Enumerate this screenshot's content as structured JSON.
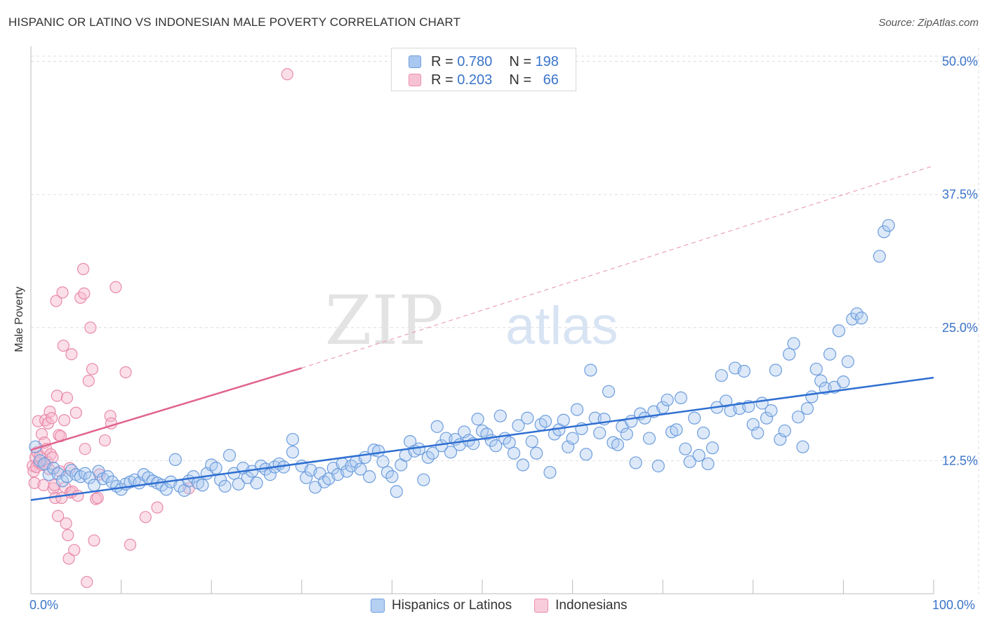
{
  "title": "HISPANIC OR LATINO VS INDONESIAN MALE POVERTY CORRELATION CHART",
  "source": "Source: ZipAtlas.com",
  "watermark": {
    "zip": "ZIP",
    "atlas": "atlas"
  },
  "colors": {
    "blue": "#3a74c9",
    "blue_fill": "#a9c7f0",
    "blue_line": "#2f6fd1",
    "pink": "#e6739a",
    "pink_fill": "#f6b7cb",
    "pink_line": "#e0648e",
    "grid": "#dddddd",
    "text": "#333333"
  },
  "stats": {
    "rows": [
      {
        "r_label": "R =",
        "r_value": "0.780",
        "n_label": "N =",
        "n_value": "198",
        "series": "Hispanics or Latinos"
      },
      {
        "r_label": "R =",
        "r_value": "0.203",
        "n_label": "N =",
        "n_value": "66",
        "series": "Indonesians"
      }
    ]
  },
  "legend": {
    "items": [
      "Hispanics or Latinos",
      "Indonesians"
    ]
  },
  "chart_data": {
    "type": "scatter",
    "title": "HISPANIC OR LATINO VS INDONESIAN MALE POVERTY CORRELATION CHART",
    "xlabel": "",
    "ylabel": "Male Poverty",
    "xlim": [
      0,
      100
    ],
    "ylim": [
      0,
      50.5
    ],
    "x_tick_labels": [
      "0.0%",
      "100.0%"
    ],
    "y_ticks": [
      12.5,
      25.0,
      37.5,
      50.0
    ],
    "y_tick_labels": [
      "12.5%",
      "25.0%",
      "37.5%",
      "50.0%"
    ],
    "grid": true,
    "legend_position": "bottom-center",
    "series": [
      {
        "name": "Hispanics or Latinos",
        "R": 0.78,
        "N": 198,
        "trendline": {
          "x": [
            0,
            100
          ],
          "y": [
            8.8,
            20.3
          ]
        },
        "points": [
          [
            0.5,
            13.8
          ],
          [
            1,
            12.5
          ],
          [
            1.5,
            12.2
          ],
          [
            2,
            11.2
          ],
          [
            2.5,
            11.8
          ],
          [
            3,
            11.3
          ],
          [
            3.5,
            10.6
          ],
          [
            4,
            11.0
          ],
          [
            4.5,
            11.6
          ],
          [
            5,
            11.2
          ],
          [
            5.5,
            11.0
          ],
          [
            6,
            11.3
          ],
          [
            6.5,
            10.9
          ],
          [
            7,
            10.2
          ],
          [
            7.5,
            11.5
          ],
          [
            8,
            10.8
          ],
          [
            8.5,
            11.0
          ],
          [
            9,
            10.5
          ],
          [
            9.5,
            10.1
          ],
          [
            10,
            9.8
          ],
          [
            10.5,
            10.3
          ],
          [
            11,
            10.5
          ],
          [
            11.5,
            10.7
          ],
          [
            12,
            10.4
          ],
          [
            12.5,
            11.2
          ],
          [
            13,
            10.9
          ],
          [
            13.5,
            10.6
          ],
          [
            14,
            10.4
          ],
          [
            14.5,
            10.2
          ],
          [
            15,
            9.8
          ],
          [
            15.5,
            10.5
          ],
          [
            16,
            12.6
          ],
          [
            16.5,
            10.1
          ],
          [
            17,
            9.7
          ],
          [
            17.5,
            10.6
          ],
          [
            18,
            11.0
          ],
          [
            18.5,
            10.4
          ],
          [
            19,
            10.2
          ],
          [
            19.5,
            11.3
          ],
          [
            20,
            12.1
          ],
          [
            20.5,
            11.8
          ],
          [
            21,
            10.7
          ],
          [
            21.5,
            10.1
          ],
          [
            22,
            13.0
          ],
          [
            22.5,
            11.3
          ],
          [
            23,
            10.3
          ],
          [
            23.5,
            11.8
          ],
          [
            24,
            10.9
          ],
          [
            24.5,
            11.5
          ],
          [
            25,
            10.4
          ],
          [
            25.5,
            12.0
          ],
          [
            26,
            11.7
          ],
          [
            26.5,
            11.2
          ],
          [
            27,
            11.9
          ],
          [
            27.5,
            12.2
          ],
          [
            28,
            11.9
          ],
          [
            29,
            14.5
          ],
          [
            29,
            13.3
          ],
          [
            30,
            12.0
          ],
          [
            30.5,
            10.9
          ],
          [
            31,
            11.6
          ],
          [
            31.5,
            10.0
          ],
          [
            32,
            11.3
          ],
          [
            32.5,
            10.5
          ],
          [
            33,
            10.8
          ],
          [
            33.5,
            11.8
          ],
          [
            34,
            11.2
          ],
          [
            34.5,
            12.2
          ],
          [
            35,
            11.5
          ],
          [
            35.5,
            12.0
          ],
          [
            36,
            12.4
          ],
          [
            36.5,
            11.7
          ],
          [
            37,
            12.8
          ],
          [
            37.5,
            11.0
          ],
          [
            38,
            13.5
          ],
          [
            38.5,
            13.4
          ],
          [
            39,
            12.4
          ],
          [
            39.5,
            11.4
          ],
          [
            40,
            11.0
          ],
          [
            40.5,
            9.6
          ],
          [
            41,
            12.1
          ],
          [
            41.5,
            13.0
          ],
          [
            42,
            14.3
          ],
          [
            42.5,
            13.4
          ],
          [
            43,
            13.6
          ],
          [
            43.5,
            10.7
          ],
          [
            44,
            12.8
          ],
          [
            44.5,
            13.2
          ],
          [
            45,
            15.7
          ],
          [
            45.5,
            13.9
          ],
          [
            46,
            14.6
          ],
          [
            46.5,
            13.3
          ],
          [
            47,
            14.5
          ],
          [
            47.5,
            14.0
          ],
          [
            48,
            15.2
          ],
          [
            48.5,
            14.4
          ],
          [
            49,
            14.1
          ],
          [
            49.5,
            16.4
          ],
          [
            50,
            15.3
          ],
          [
            50.5,
            15.0
          ],
          [
            51,
            14.4
          ],
          [
            51.5,
            13.9
          ],
          [
            52,
            16.7
          ],
          [
            52.5,
            14.6
          ],
          [
            53,
            14.2
          ],
          [
            53.5,
            13.2
          ],
          [
            54,
            15.8
          ],
          [
            54.5,
            12.1
          ],
          [
            55,
            16.5
          ],
          [
            55.5,
            14.3
          ],
          [
            56,
            13.2
          ],
          [
            56.5,
            15.9
          ],
          [
            57,
            16.2
          ],
          [
            57.5,
            11.4
          ],
          [
            58,
            15.0
          ],
          [
            58.5,
            15.4
          ],
          [
            59,
            16.3
          ],
          [
            59.5,
            13.8
          ],
          [
            60,
            14.6
          ],
          [
            60.5,
            17.3
          ],
          [
            61,
            15.5
          ],
          [
            61.5,
            13.1
          ],
          [
            62,
            21.0
          ],
          [
            62.5,
            16.5
          ],
          [
            63,
            15.1
          ],
          [
            63.5,
            16.4
          ],
          [
            64,
            19.0
          ],
          [
            64.5,
            14.2
          ],
          [
            65,
            14.0
          ],
          [
            65.5,
            15.7
          ],
          [
            66,
            15.0
          ],
          [
            66.5,
            16.2
          ],
          [
            67,
            12.3
          ],
          [
            67.5,
            16.9
          ],
          [
            68,
            16.5
          ],
          [
            68.5,
            14.6
          ],
          [
            69,
            17.1
          ],
          [
            69.5,
            12.0
          ],
          [
            70,
            17.5
          ],
          [
            70.5,
            18.2
          ],
          [
            71,
            15.2
          ],
          [
            71.5,
            15.4
          ],
          [
            72,
            18.4
          ],
          [
            72.5,
            13.6
          ],
          [
            73,
            12.4
          ],
          [
            73.5,
            16.5
          ],
          [
            74,
            13.0
          ],
          [
            74.5,
            15.1
          ],
          [
            75,
            12.2
          ],
          [
            75.5,
            13.7
          ],
          [
            76,
            17.5
          ],
          [
            76.5,
            20.5
          ],
          [
            77,
            18.1
          ],
          [
            77.5,
            17.2
          ],
          [
            78,
            21.2
          ],
          [
            78.5,
            17.4
          ],
          [
            79,
            20.9
          ],
          [
            79.5,
            17.6
          ],
          [
            80,
            15.9
          ],
          [
            80.5,
            15.1
          ],
          [
            81,
            17.9
          ],
          [
            81.5,
            16.5
          ],
          [
            82,
            17.2
          ],
          [
            82.5,
            21.0
          ],
          [
            83,
            14.5
          ],
          [
            83.5,
            15.3
          ],
          [
            84,
            22.5
          ],
          [
            84.5,
            23.5
          ],
          [
            85,
            16.6
          ],
          [
            85.5,
            13.8
          ],
          [
            86,
            17.4
          ],
          [
            86.5,
            18.5
          ],
          [
            87,
            21.1
          ],
          [
            87.5,
            20.0
          ],
          [
            88,
            19.3
          ],
          [
            88.5,
            22.5
          ],
          [
            89,
            19.4
          ],
          [
            89.5,
            24.7
          ],
          [
            90,
            19.9
          ],
          [
            90.5,
            21.8
          ],
          [
            91,
            25.8
          ],
          [
            91.5,
            26.3
          ],
          [
            92,
            25.9
          ],
          [
            94,
            31.7
          ],
          [
            94.5,
            34.0
          ],
          [
            95,
            34.6
          ]
        ]
      },
      {
        "name": "Indonesians",
        "R": 0.203,
        "N": 66,
        "trendline": {
          "x": [
            0,
            30
          ],
          "y": [
            13.5,
            21.2
          ],
          "dashed_extension": {
            "x": [
              30,
              100
            ],
            "y": [
              21.2,
              40.2
            ]
          }
        },
        "points": [
          [
            0.2,
            12.0
          ],
          [
            0.3,
            11.5
          ],
          [
            0.4,
            10.4
          ],
          [
            0.5,
            12.8
          ],
          [
            0.6,
            11.9
          ],
          [
            0.7,
            13.3
          ],
          [
            0.8,
            16.2
          ],
          [
            0.9,
            12.3
          ],
          [
            1,
            12.9
          ],
          [
            1.2,
            15.0
          ],
          [
            1.3,
            12.1
          ],
          [
            1.4,
            10.2
          ],
          [
            1.5,
            14.2
          ],
          [
            1.6,
            16.3
          ],
          [
            1.7,
            13.6
          ],
          [
            1.8,
            12.4
          ],
          [
            1.9,
            16.0
          ],
          [
            2,
            11.7
          ],
          [
            2.1,
            17.1
          ],
          [
            2.2,
            13.1
          ],
          [
            2.3,
            16.5
          ],
          [
            2.4,
            12.8
          ],
          [
            2.5,
            9.9
          ],
          [
            2.6,
            10.2
          ],
          [
            2.7,
            9.0
          ],
          [
            2.8,
            27.5
          ],
          [
            2.9,
            18.6
          ],
          [
            3,
            7.3
          ],
          [
            3.1,
            14.9
          ],
          [
            3.2,
            11.5
          ],
          [
            3.3,
            14.8
          ],
          [
            3.4,
            9.0
          ],
          [
            3.5,
            28.3
          ],
          [
            3.6,
            23.3
          ],
          [
            3.7,
            16.3
          ],
          [
            3.8,
            10.0
          ],
          [
            3.9,
            6.6
          ],
          [
            4,
            18.4
          ],
          [
            4.1,
            5.5
          ],
          [
            4.2,
            3.3
          ],
          [
            4.3,
            11.8
          ],
          [
            4.4,
            9.5
          ],
          [
            4.5,
            22.5
          ],
          [
            4.6,
            9.6
          ],
          [
            4.8,
            4.1
          ],
          [
            5,
            17.0
          ],
          [
            5.2,
            9.2
          ],
          [
            5.5,
            27.8
          ],
          [
            5.8,
            30.5
          ],
          [
            5.9,
            28.2
          ],
          [
            6,
            13.6
          ],
          [
            6.2,
            1.1
          ],
          [
            6.4,
            20.0
          ],
          [
            6.6,
            25.0
          ],
          [
            6.8,
            21.1
          ],
          [
            7,
            5.0
          ],
          [
            7.2,
            8.9
          ],
          [
            7.4,
            9.0
          ],
          [
            7.6,
            11.2
          ],
          [
            8.2,
            14.4
          ],
          [
            8.8,
            16.7
          ],
          [
            8.9,
            16.0
          ],
          [
            9.4,
            28.8
          ],
          [
            10.5,
            20.8
          ],
          [
            11,
            4.6
          ],
          [
            12.7,
            7.2
          ],
          [
            14,
            8.1
          ],
          [
            17.5,
            9.9
          ],
          [
            28.4,
            48.8
          ]
        ]
      }
    ]
  }
}
